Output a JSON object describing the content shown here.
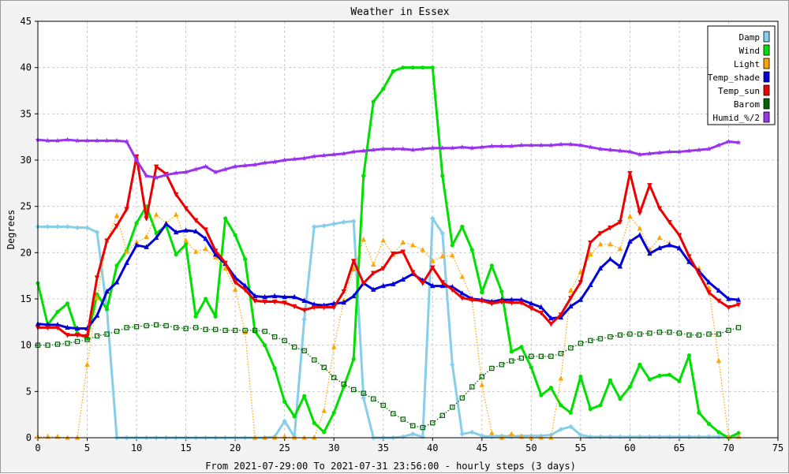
{
  "chart_data": {
    "type": "line",
    "title": "Weather in Essex",
    "xlabel": "From 2021-07-29:00 To 2021-07-31 23:56:00 - hourly steps (3 days)",
    "ylabel": "Degrees",
    "xlim": [
      0,
      75
    ],
    "ylim": [
      0,
      45
    ],
    "xticks": [
      0,
      5,
      10,
      15,
      20,
      25,
      30,
      35,
      40,
      45,
      50,
      55,
      60,
      65,
      70,
      75
    ],
    "yticks": [
      0,
      5,
      10,
      15,
      20,
      25,
      30,
      35,
      40,
      45
    ],
    "grid": true,
    "legend_position": "top-right",
    "series": [
      {
        "name": "Damp",
        "color": "#87ceeb",
        "marker": "diamond",
        "style": "solid",
        "values": [
          22.8,
          22.8,
          22.8,
          22.8,
          22.7,
          22.7,
          22.2,
          13.8,
          0,
          0,
          0,
          0,
          0,
          0,
          0,
          0,
          0,
          0,
          0,
          0,
          0,
          0,
          0,
          0,
          0.1,
          1.8,
          0.1,
          12.8,
          22.8,
          22.9,
          23.1,
          23.3,
          23.4,
          4.3,
          0,
          0,
          0,
          0.1,
          0.4,
          0.1,
          23.7,
          22.1,
          7.9,
          0.4,
          0.6,
          0.2,
          0.1,
          0.2,
          0.1,
          0.2,
          0.2,
          0.2,
          0.3,
          0.9,
          1.2,
          0.3,
          0.1,
          0.1,
          0.1,
          0.1,
          0.1,
          0.1,
          0.1,
          0.1,
          0.1,
          0.1,
          0.1,
          0.1,
          0.1,
          0.1,
          0.1,
          0.1
        ]
      },
      {
        "name": "Wind",
        "color": "#00e000",
        "marker": "circle",
        "style": "solid",
        "values": [
          16.7,
          12.2,
          13.6,
          14.5,
          11.3,
          10.7,
          15.5,
          13.9,
          18.6,
          20.2,
          23.2,
          25.0,
          22.1,
          22.9,
          19.8,
          20.9,
          13.1,
          15.0,
          13.1,
          23.7,
          21.9,
          19.3,
          11.5,
          10.0,
          7.5,
          3.9,
          2.3,
          4.5,
          1.6,
          0.6,
          2.7,
          5.5,
          8.5,
          28.3,
          36.3,
          37.7,
          39.6,
          40.0,
          40.0,
          40.0,
          40.0,
          28.3,
          20.8,
          22.8,
          20.3,
          15.7,
          18.6,
          15.8,
          9.3,
          9.8,
          7.6,
          4.6,
          5.4,
          3.5,
          2.7,
          6.6,
          3.1,
          3.5,
          6.2,
          4.2,
          5.5,
          7.9,
          6.3,
          6.7,
          6.8,
          6.1,
          8.9,
          2.7,
          1.5,
          0.6,
          0,
          0.5
        ]
      },
      {
        "name": "Light",
        "color": "#ffa500",
        "marker": "triangle-up",
        "style": "dotted",
        "values": [
          0.1,
          0.1,
          0.1,
          0,
          0,
          7.9,
          15.1,
          21.3,
          24.0,
          20.1,
          21.1,
          21.7,
          24.1,
          23.2,
          24.1,
          21.3,
          20.1,
          20.4,
          19.5,
          18.3,
          16.0,
          11.4,
          0,
          0,
          0,
          0.1,
          0,
          0,
          0,
          2.9,
          9.8,
          14.8,
          18.2,
          21.4,
          18.7,
          21.3,
          19.8,
          21.1,
          20.8,
          20.3,
          19.1,
          19.6,
          19.7,
          17.4,
          15.0,
          5.7,
          0.5,
          0,
          0.4,
          0.1,
          0,
          0,
          0,
          6.4,
          15.9,
          17.9,
          19.8,
          20.9,
          20.9,
          20.4,
          23.9,
          22.6,
          20.3,
          21.6,
          21.0,
          20.4,
          19.0,
          18.3,
          16.2,
          8.3,
          0.1,
          0.1
        ]
      },
      {
        "name": "Temp_shade",
        "color": "#0000dd",
        "marker": "triangle-up",
        "style": "solid",
        "values": [
          12.3,
          12.2,
          12.2,
          11.9,
          11.8,
          11.8,
          13.2,
          15.8,
          16.8,
          18.9,
          20.8,
          20.6,
          21.6,
          23.1,
          22.2,
          22.4,
          22.3,
          21.5,
          19.8,
          18.8,
          17.3,
          16.4,
          15.3,
          15.2,
          15.3,
          15.2,
          15.2,
          14.8,
          14.4,
          14.3,
          14.5,
          14.6,
          15.3,
          16.7,
          16.0,
          16.4,
          16.6,
          17.1,
          17.7,
          17.0,
          16.4,
          16.4,
          16.3,
          15.6,
          15.0,
          14.9,
          14.7,
          14.9,
          14.9,
          14.9,
          14.5,
          14.1,
          12.9,
          13.0,
          14.2,
          14.9,
          16.5,
          18.3,
          19.3,
          18.5,
          21.2,
          21.9,
          19.9,
          20.5,
          20.8,
          20.5,
          19.0,
          18.0,
          16.8,
          15.9,
          15.0,
          14.9
        ]
      },
      {
        "name": "Temp_sun",
        "color": "#ee0000",
        "marker": "triangle-down",
        "style": "solid",
        "values": [
          11.9,
          11.9,
          11.9,
          11.1,
          11.1,
          11.0,
          17.3,
          21.3,
          22.9,
          24.7,
          30.4,
          23.7,
          29.3,
          28.5,
          26.3,
          24.8,
          23.5,
          22.5,
          20.2,
          18.9,
          16.8,
          16.0,
          14.8,
          14.7,
          14.7,
          14.6,
          14.2,
          13.8,
          14.1,
          14.1,
          14.1,
          15.8,
          19.1,
          16.7,
          17.8,
          18.3,
          19.9,
          20.1,
          17.9,
          16.7,
          18.4,
          16.8,
          16.0,
          15.1,
          14.9,
          14.8,
          14.5,
          14.7,
          14.6,
          14.6,
          14.0,
          13.5,
          12.3,
          13.3,
          15.1,
          16.8,
          21.1,
          22.1,
          22.7,
          23.3,
          28.6,
          24.3,
          27.3,
          24.8,
          23.3,
          21.9,
          19.6,
          17.7,
          15.7,
          14.8,
          14.1,
          14.4
        ]
      },
      {
        "name": "Barom",
        "color": "#006600",
        "marker": "square",
        "style": "dotted",
        "values": [
          10.0,
          10.0,
          10.1,
          10.2,
          10.4,
          10.6,
          11.0,
          11.2,
          11.5,
          11.9,
          12.0,
          12.1,
          12.2,
          12.1,
          11.9,
          11.8,
          11.9,
          11.7,
          11.7,
          11.6,
          11.6,
          11.6,
          11.6,
          11.5,
          10.9,
          10.5,
          9.8,
          9.4,
          8.4,
          7.6,
          6.5,
          5.8,
          5.2,
          4.8,
          4.2,
          3.5,
          2.6,
          2.0,
          1.3,
          1.1,
          1.6,
          2.4,
          3.3,
          4.3,
          5.5,
          6.6,
          7.5,
          7.9,
          8.3,
          8.6,
          8.8,
          8.8,
          8.8,
          9.1,
          9.7,
          10.2,
          10.5,
          10.7,
          10.9,
          11.1,
          11.2,
          11.2,
          11.3,
          11.4,
          11.4,
          11.3,
          11.1,
          11.1,
          11.2,
          11.2,
          11.6,
          11.9
        ]
      },
      {
        "name": "Humid_%/2",
        "color": "#9933ee",
        "marker": "star",
        "style": "solid",
        "values": [
          32.2,
          32.1,
          32.1,
          32.2,
          32.1,
          32.1,
          32.1,
          32.1,
          32.1,
          32.0,
          30.0,
          28.3,
          28.1,
          28.4,
          28.6,
          28.7,
          29.0,
          29.3,
          28.7,
          29.0,
          29.3,
          29.4,
          29.5,
          29.7,
          29.8,
          30.0,
          30.1,
          30.2,
          30.4,
          30.5,
          30.6,
          30.7,
          30.9,
          31.0,
          31.1,
          31.2,
          31.2,
          31.2,
          31.1,
          31.2,
          31.3,
          31.3,
          31.3,
          31.4,
          31.3,
          31.4,
          31.5,
          31.5,
          31.5,
          31.6,
          31.6,
          31.6,
          31.6,
          31.7,
          31.7,
          31.6,
          31.4,
          31.2,
          31.1,
          31.0,
          30.9,
          30.6,
          30.7,
          30.8,
          30.9,
          30.9,
          31.0,
          31.1,
          31.2,
          31.6,
          32.0,
          31.9
        ]
      }
    ]
  }
}
